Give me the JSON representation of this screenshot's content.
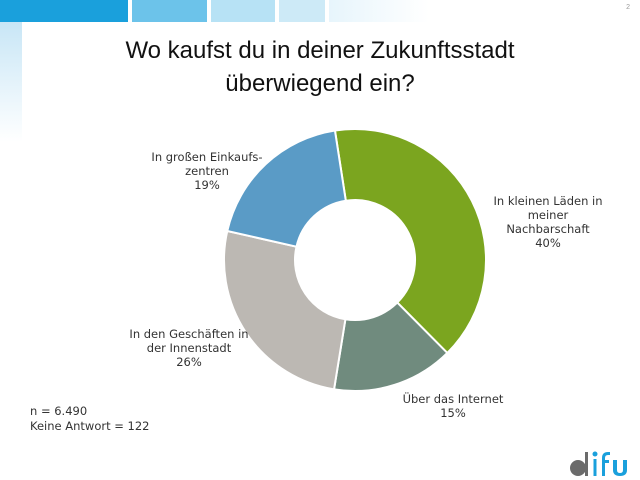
{
  "page_number": "2",
  "title_lines": [
    "Wo kaufst du in deiner Zukunftsstadt",
    "überwiegend ein?"
  ],
  "footnote": {
    "n": "n = 6.490",
    "no_answer": "Keine Antwort = 122"
  },
  "logo_text": "difu",
  "colors": {
    "green": "#7ba51f",
    "teal": "#708b7e",
    "gray": "#bcb8b3",
    "blue": "#5a9bc6",
    "header_band": "#1aa0dc"
  },
  "chart_data": {
    "type": "pie",
    "donut": true,
    "slices": [
      {
        "label_lines": [
          "In kleinen Läden in",
          "meiner",
          "Nachbarschaft"
        ],
        "value": 40,
        "value_label": "40%",
        "color": "#7ba51f"
      },
      {
        "label_lines": [
          "Über das Internet"
        ],
        "value": 15,
        "value_label": "15%",
        "color": "#708b7e"
      },
      {
        "label_lines": [
          "In den Geschäften in",
          "der Innenstadt"
        ],
        "value": 26,
        "value_label": "26%",
        "color": "#bcb8b3"
      },
      {
        "label_lines": [
          "In großen Einkaufs-",
          "zentren"
        ],
        "value": 19,
        "value_label": "19%",
        "color": "#5a9bc6"
      }
    ]
  }
}
